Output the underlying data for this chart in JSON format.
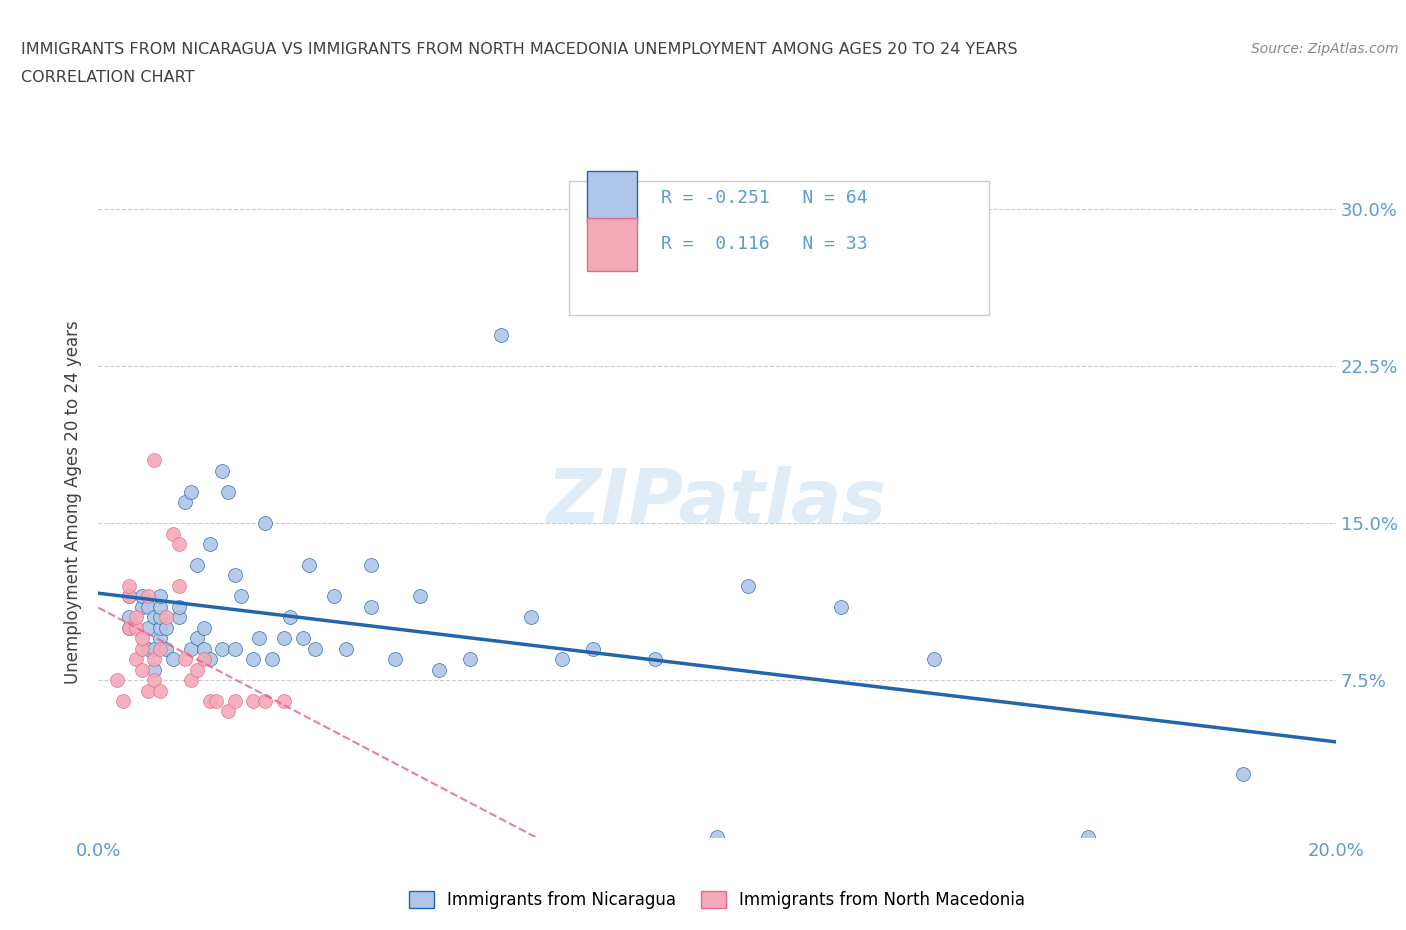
{
  "title_line1": "IMMIGRANTS FROM NICARAGUA VS IMMIGRANTS FROM NORTH MACEDONIA UNEMPLOYMENT AMONG AGES 20 TO 24 YEARS",
  "title_line2": "CORRELATION CHART",
  "source": "Source: ZipAtlas.com",
  "ylabel": "Unemployment Among Ages 20 to 24 years",
  "xlim": [
    0.0,
    0.2
  ],
  "ylim": [
    0.0,
    0.32
  ],
  "ytick_positions": [
    0.0,
    0.075,
    0.15,
    0.225,
    0.3
  ],
  "ytick_labels": [
    "",
    "7.5%",
    "15.0%",
    "22.5%",
    "30.0%"
  ],
  "R_nicaragua": -0.251,
  "N_nicaragua": 64,
  "R_north_macedonia": 0.116,
  "N_north_macedonia": 33,
  "color_nicaragua": "#aec6e8",
  "color_nicaragua_line": "#2166ac",
  "color_north_macedonia": "#f4a9b8",
  "color_north_macedonia_line": "#e8678a",
  "watermark": "ZIPatlas",
  "title_color": "#404040",
  "axis_color": "#5b9bd5",
  "grid_color": "#cccccc",
  "nicaragua_x": [
    0.005,
    0.005,
    0.005,
    0.007,
    0.007,
    0.008,
    0.008,
    0.008,
    0.009,
    0.009,
    0.009,
    0.01,
    0.01,
    0.01,
    0.01,
    0.01,
    0.011,
    0.011,
    0.012,
    0.013,
    0.013,
    0.014,
    0.015,
    0.015,
    0.016,
    0.016,
    0.017,
    0.017,
    0.018,
    0.018,
    0.02,
    0.02,
    0.021,
    0.022,
    0.022,
    0.023,
    0.025,
    0.026,
    0.027,
    0.028,
    0.03,
    0.031,
    0.033,
    0.034,
    0.035,
    0.038,
    0.04,
    0.044,
    0.044,
    0.048,
    0.052,
    0.055,
    0.06,
    0.065,
    0.07,
    0.075,
    0.08,
    0.09,
    0.1,
    0.105,
    0.12,
    0.135,
    0.16,
    0.185
  ],
  "nicaragua_y": [
    0.1,
    0.115,
    0.105,
    0.11,
    0.115,
    0.09,
    0.1,
    0.11,
    0.08,
    0.09,
    0.105,
    0.095,
    0.1,
    0.105,
    0.11,
    0.115,
    0.09,
    0.1,
    0.085,
    0.105,
    0.11,
    0.16,
    0.09,
    0.165,
    0.095,
    0.13,
    0.09,
    0.1,
    0.085,
    0.14,
    0.175,
    0.09,
    0.165,
    0.09,
    0.125,
    0.115,
    0.085,
    0.095,
    0.15,
    0.085,
    0.095,
    0.105,
    0.095,
    0.13,
    0.09,
    0.115,
    0.09,
    0.13,
    0.11,
    0.085,
    0.115,
    0.08,
    0.085,
    0.24,
    0.105,
    0.085,
    0.09,
    0.085,
    0.0,
    0.12,
    0.11,
    0.085,
    0.0,
    0.03
  ],
  "north_macedonia_x": [
    0.003,
    0.004,
    0.005,
    0.005,
    0.005,
    0.006,
    0.006,
    0.006,
    0.007,
    0.007,
    0.007,
    0.008,
    0.008,
    0.009,
    0.009,
    0.009,
    0.01,
    0.01,
    0.011,
    0.012,
    0.013,
    0.013,
    0.014,
    0.015,
    0.016,
    0.017,
    0.018,
    0.019,
    0.021,
    0.022,
    0.025,
    0.027,
    0.03
  ],
  "north_macedonia_y": [
    0.075,
    0.065,
    0.1,
    0.115,
    0.12,
    0.085,
    0.1,
    0.105,
    0.08,
    0.09,
    0.095,
    0.07,
    0.115,
    0.075,
    0.085,
    0.18,
    0.07,
    0.09,
    0.105,
    0.145,
    0.14,
    0.12,
    0.085,
    0.075,
    0.08,
    0.085,
    0.065,
    0.065,
    0.06,
    0.065,
    0.065,
    0.065,
    0.065
  ]
}
